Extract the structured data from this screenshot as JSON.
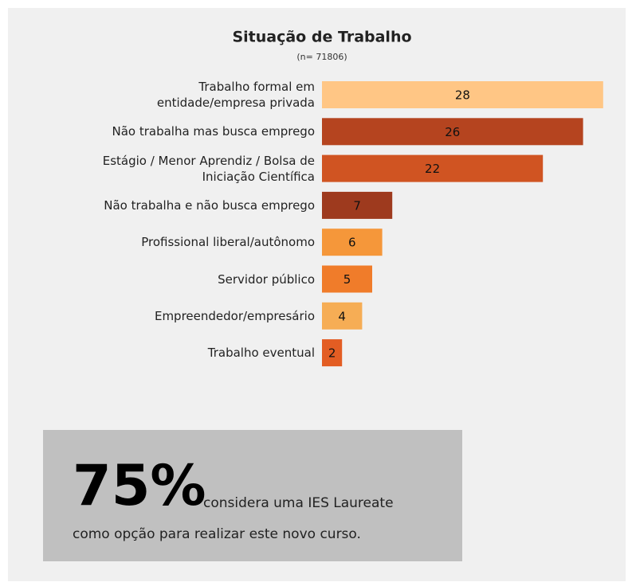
{
  "chart_data": {
    "type": "bar",
    "orientation": "horizontal",
    "title": "Situação de Trabalho",
    "subtitle": "(n= 71806)",
    "categories": [
      "Trabalho formal em\nentidade/empresa privada",
      "Não trabalha mas busca emprego",
      "Estágio / Menor Aprendiz / Bolsa de\nIniciação Científica",
      "Não trabalha e não busca emprego",
      "Profissional liberal/autônomo",
      "Servidor público",
      "Empreendedor/empresário",
      "Trabalho eventual"
    ],
    "values": [
      28,
      26,
      22,
      7,
      6,
      5,
      4,
      2
    ],
    "colors": [
      "#ffc685",
      "#b5441f",
      "#d05422",
      "#9e3a1e",
      "#f5973a",
      "#f07c2a",
      "#f6ad55",
      "#e35d23"
    ]
  },
  "callout": {
    "headline": "75%",
    "line1": "considera uma IES Laureate",
    "line2": "como opção para realizar este novo curso."
  }
}
